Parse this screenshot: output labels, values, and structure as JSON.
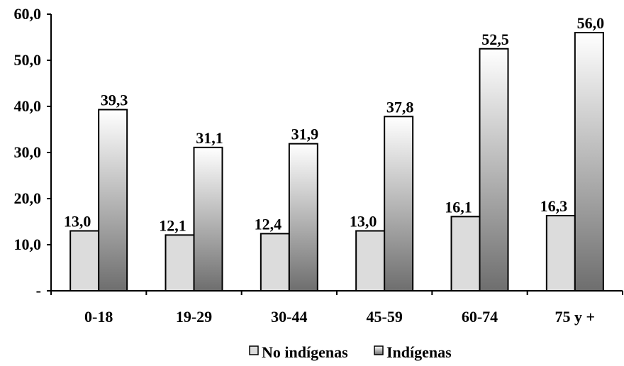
{
  "chart_data": {
    "type": "bar",
    "categories": [
      "0-18",
      "19-29",
      "30-44",
      "45-59",
      "60-74",
      "75 y +"
    ],
    "series": [
      {
        "name": "No indígenas",
        "values": [
          13.0,
          12.1,
          12.4,
          13.0,
          16.1,
          16.3
        ],
        "labels": [
          "13,0",
          "12,1",
          "12,4",
          "13,0",
          "16,1",
          "16,3"
        ],
        "color": "#dcdcdc"
      },
      {
        "name": "Indígenas",
        "values": [
          39.3,
          31.1,
          31.9,
          37.8,
          52.5,
          56.0
        ],
        "labels": [
          "39,3",
          "31,1",
          "31,9",
          "37,8",
          "52,5",
          "56,0"
        ],
        "gradient": [
          "#ffffff",
          "#6e6e6e"
        ]
      }
    ],
    "yticks": [
      {
        "value": 0,
        "label": "-"
      },
      {
        "value": 10,
        "label": "10,0"
      },
      {
        "value": 20,
        "label": "20,0"
      },
      {
        "value": 30,
        "label": "30,0"
      },
      {
        "value": 40,
        "label": "40,0"
      },
      {
        "value": 50,
        "label": "50,0"
      },
      {
        "value": 60,
        "label": "60,0"
      }
    ],
    "ylim": [
      0,
      60
    ],
    "grid": false,
    "legend_position": "bottom-center"
  }
}
